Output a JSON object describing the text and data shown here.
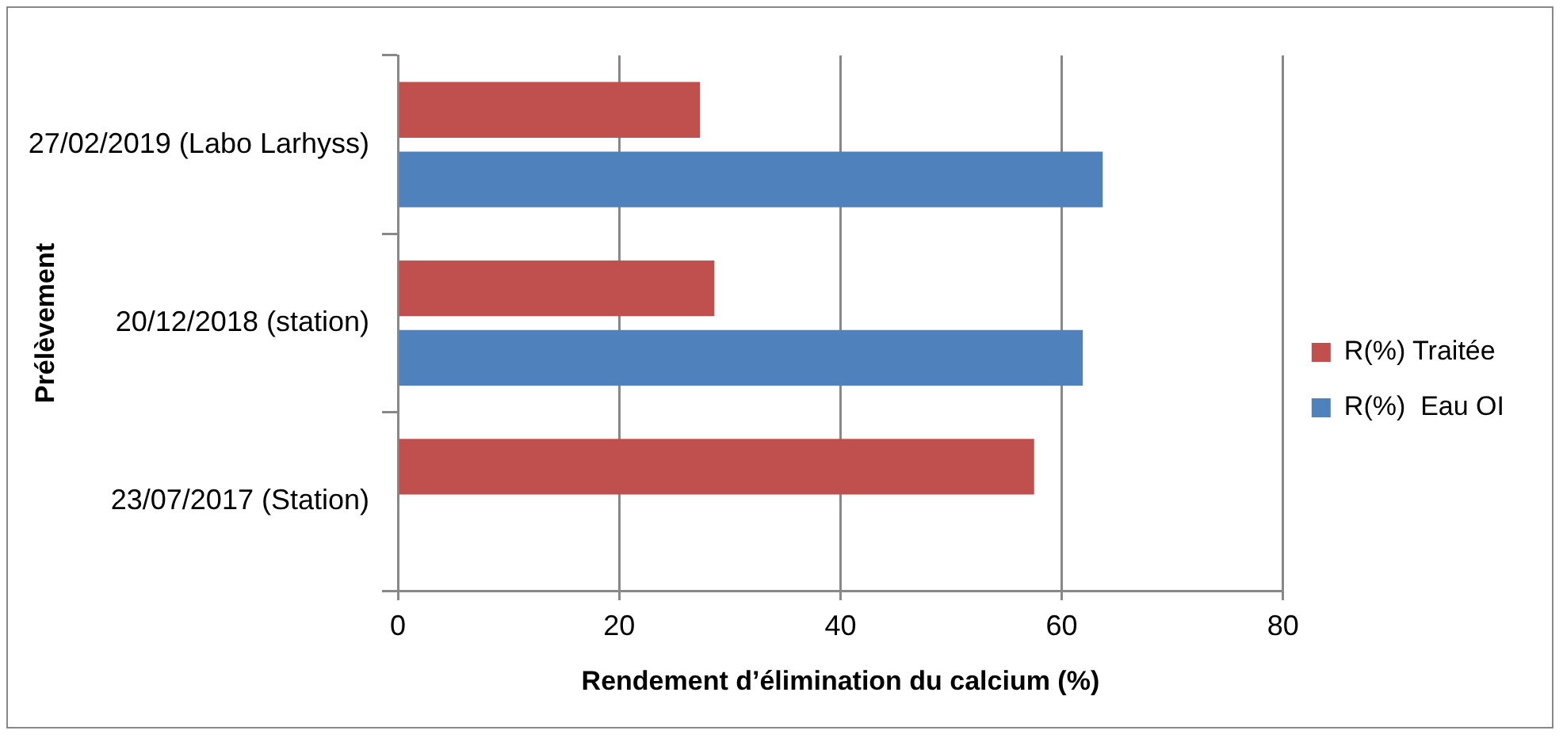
{
  "chart_data": {
    "type": "bar",
    "orientation": "horizontal",
    "xlabel": "Rendement d’élimination du calcium (%)",
    "ylabel": "Prélèvement",
    "categories": [
      "27/02/2019 (Labo Larhyss)",
      "20/12/2018 (station)",
      "23/07/2017 (Station)"
    ],
    "series": [
      {
        "name": "R(%) Traitée",
        "color": "#c0504d",
        "values": [
          27.3,
          28.6,
          57.5
        ]
      },
      {
        "name": "R(%)  Eau OI",
        "color": "#4f81bd",
        "values": [
          63.7,
          61.9,
          null
        ]
      }
    ],
    "xlim": [
      0,
      80
    ],
    "xticks": [
      0,
      20,
      40,
      60,
      80
    ],
    "grid": "x",
    "legend": "right"
  }
}
